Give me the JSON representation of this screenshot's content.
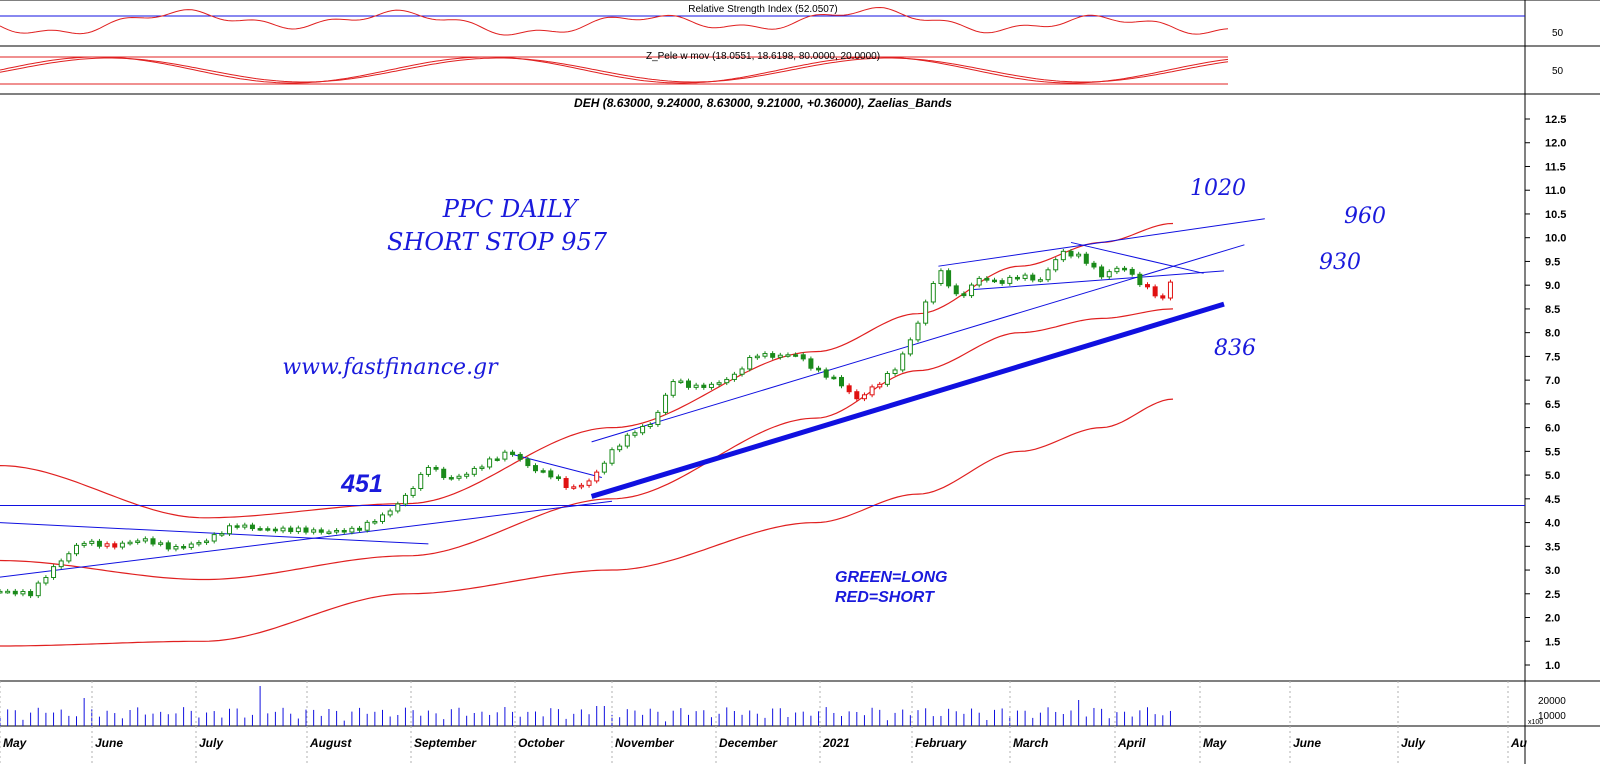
{
  "colors": {
    "grid": "#000000",
    "up_candle": "#1a8a1a",
    "down_candle": "#e01010",
    "band": "#e02020",
    "trend": "#1010e0",
    "annotation": "#1a1adc",
    "rsi": "#e02020",
    "volume": "#1010e0"
  },
  "rsi_panel": {
    "title": "Relative Strength Index (52.0507)",
    "tick_label": "50"
  },
  "pele_panel": {
    "title": "Z_Pele w mov (18.0551, 18.6198, 80.0000, 20.0000)",
    "tick_label": "50"
  },
  "main_title": "DEH (8.63000, 9.24000, 8.63000, 9.21000, +0.36000), Zaelias_Bands",
  "volume_panel": {
    "tick_labels": [
      "20000",
      "10000"
    ],
    "scale_note": "x100"
  },
  "annotations": {
    "title_line1": "PPC DAILY",
    "title_line2": "SHORT STOP 957",
    "website": "www.fastfinance.gr",
    "level_451": "451",
    "level_1020": "1020",
    "level_960": "960",
    "level_930": "930",
    "level_836": "836",
    "legend_green": "GREEN=LONG",
    "legend_red": "RED=SHORT"
  },
  "chart_data": {
    "type": "candlestick",
    "title": "DEH (8.63000, 9.24000, 8.63000, 9.21000, +0.36000), Zaelias_Bands",
    "ylim": [
      0.5,
      13.0
    ],
    "y_ticks": [
      1.0,
      1.5,
      2.0,
      2.5,
      3.0,
      3.5,
      4.0,
      4.5,
      5.0,
      5.5,
      6.0,
      6.5,
      7.0,
      7.5,
      8.0,
      8.5,
      9.0,
      9.5,
      10.0,
      10.5,
      11.0,
      11.5,
      12.0,
      12.5
    ],
    "y_tick_labels": [
      "1.0",
      "1.5",
      "2.0",
      "2.5",
      "3.0",
      "3.5",
      "4.0",
      "4.5",
      "5.0",
      "5.5",
      "6.0",
      "6.5",
      "7.0",
      "7.5",
      "8.0",
      "8.5",
      "9.0",
      "9.5",
      "10.0",
      "10.5",
      "11.0",
      "11.5",
      "12.0",
      "12.5"
    ],
    "x_months": [
      "May",
      "June",
      "July",
      "August",
      "September",
      "October",
      "November",
      "December",
      "2021",
      "February",
      "March",
      "April",
      "May",
      "June",
      "July",
      "Au"
    ],
    "last_bar": {
      "open": 8.63,
      "high": 9.24,
      "low": 8.63,
      "close": 9.21,
      "change": 0.36
    },
    "horizontal_level": 4.36,
    "price_path": [
      {
        "t": 0,
        "c": 2.55
      },
      {
        "t": 3,
        "c": 2.5
      },
      {
        "t": 5,
        "c": 3.0
      },
      {
        "t": 8,
        "c": 3.6
      },
      {
        "t": 11,
        "c": 3.5
      },
      {
        "t": 14,
        "c": 3.65
      },
      {
        "t": 17,
        "c": 3.45
      },
      {
        "t": 20,
        "c": 3.6
      },
      {
        "t": 23,
        "c": 3.95
      },
      {
        "t": 26,
        "c": 3.85
      },
      {
        "t": 29,
        "c": 3.85
      },
      {
        "t": 32,
        "c": 3.8
      },
      {
        "t": 35,
        "c": 3.85
      },
      {
        "t": 38,
        "c": 4.2
      },
      {
        "t": 40,
        "c": 4.6
      },
      {
        "t": 42,
        "c": 5.2
      },
      {
        "t": 44,
        "c": 4.9
      },
      {
        "t": 46,
        "c": 5.05
      },
      {
        "t": 48,
        "c": 5.3
      },
      {
        "t": 50,
        "c": 5.5
      },
      {
        "t": 52,
        "c": 5.15
      },
      {
        "t": 54,
        "c": 5.0
      },
      {
        "t": 56,
        "c": 4.7
      },
      {
        "t": 58,
        "c": 4.9
      },
      {
        "t": 60,
        "c": 5.5
      },
      {
        "t": 62,
        "c": 5.9
      },
      {
        "t": 64,
        "c": 6.1
      },
      {
        "t": 66,
        "c": 7.0
      },
      {
        "t": 68,
        "c": 6.85
      },
      {
        "t": 70,
        "c": 6.9
      },
      {
        "t": 72,
        "c": 7.1
      },
      {
        "t": 74,
        "c": 7.55
      },
      {
        "t": 76,
        "c": 7.5
      },
      {
        "t": 78,
        "c": 7.55
      },
      {
        "t": 80,
        "c": 7.2
      },
      {
        "t": 82,
        "c": 7.0
      },
      {
        "t": 84,
        "c": 6.6
      },
      {
        "t": 86,
        "c": 6.9
      },
      {
        "t": 88,
        "c": 7.3
      },
      {
        "t": 90,
        "c": 8.2
      },
      {
        "t": 92,
        "c": 9.35
      },
      {
        "t": 94,
        "c": 8.7
      },
      {
        "t": 96,
        "c": 9.15
      },
      {
        "t": 98,
        "c": 9.05
      },
      {
        "t": 100,
        "c": 9.2
      },
      {
        "t": 102,
        "c": 9.1
      },
      {
        "t": 104,
        "c": 9.7
      },
      {
        "t": 106,
        "c": 9.6
      },
      {
        "t": 108,
        "c": 9.2
      },
      {
        "t": 110,
        "c": 9.4
      },
      {
        "t": 112,
        "c": 9.0
      },
      {
        "t": 114,
        "c": 8.7
      },
      {
        "t": 115,
        "c": 9.21
      }
    ],
    "bands": [
      {
        "name": "upper",
        "points": [
          [
            0,
            5.2
          ],
          [
            20,
            4.1
          ],
          [
            40,
            4.4
          ],
          [
            60,
            6.0
          ],
          [
            80,
            7.6
          ],
          [
            90,
            8.4
          ],
          [
            100,
            9.4
          ],
          [
            108,
            9.9
          ],
          [
            115,
            10.3
          ]
        ]
      },
      {
        "name": "middle",
        "points": [
          [
            0,
            3.2
          ],
          [
            20,
            2.8
          ],
          [
            40,
            3.3
          ],
          [
            60,
            4.5
          ],
          [
            80,
            6.2
          ],
          [
            90,
            7.2
          ],
          [
            100,
            8.0
          ],
          [
            108,
            8.3
          ],
          [
            115,
            8.5
          ]
        ]
      },
      {
        "name": "lower",
        "points": [
          [
            0,
            1.4
          ],
          [
            20,
            1.5
          ],
          [
            40,
            2.5
          ],
          [
            60,
            3.0
          ],
          [
            80,
            4.0
          ],
          [
            90,
            4.6
          ],
          [
            100,
            5.5
          ],
          [
            108,
            6.0
          ],
          [
            115,
            6.6
          ]
        ]
      }
    ],
    "trend_lines": [
      {
        "name": "main-support",
        "from": [
          58,
          4.55
        ],
        "to": [
          120,
          8.6
        ],
        "thick": true
      },
      {
        "name": "lower-channel",
        "from": [
          0,
          2.85
        ],
        "to": [
          60,
          4.45
        ]
      },
      {
        "name": "descending",
        "from": [
          0,
          4.0
        ],
        "to": [
          42,
          3.55
        ]
      },
      {
        "name": "upper-channel",
        "from": [
          58,
          5.7
        ],
        "to": [
          122,
          9.85
        ]
      },
      {
        "name": "wedge-top",
        "from": [
          92,
          9.4
        ],
        "to": [
          124,
          10.4
        ]
      },
      {
        "name": "wedge-bottom",
        "from": [
          95,
          8.9
        ],
        "to": [
          120,
          9.3
        ]
      },
      {
        "name": "wedge-resistance",
        "from": [
          105,
          9.9
        ],
        "to": [
          118,
          9.25
        ]
      },
      {
        "name": "oct-resistance",
        "from": [
          50,
          5.45
        ],
        "to": [
          59,
          4.95
        ]
      }
    ]
  }
}
